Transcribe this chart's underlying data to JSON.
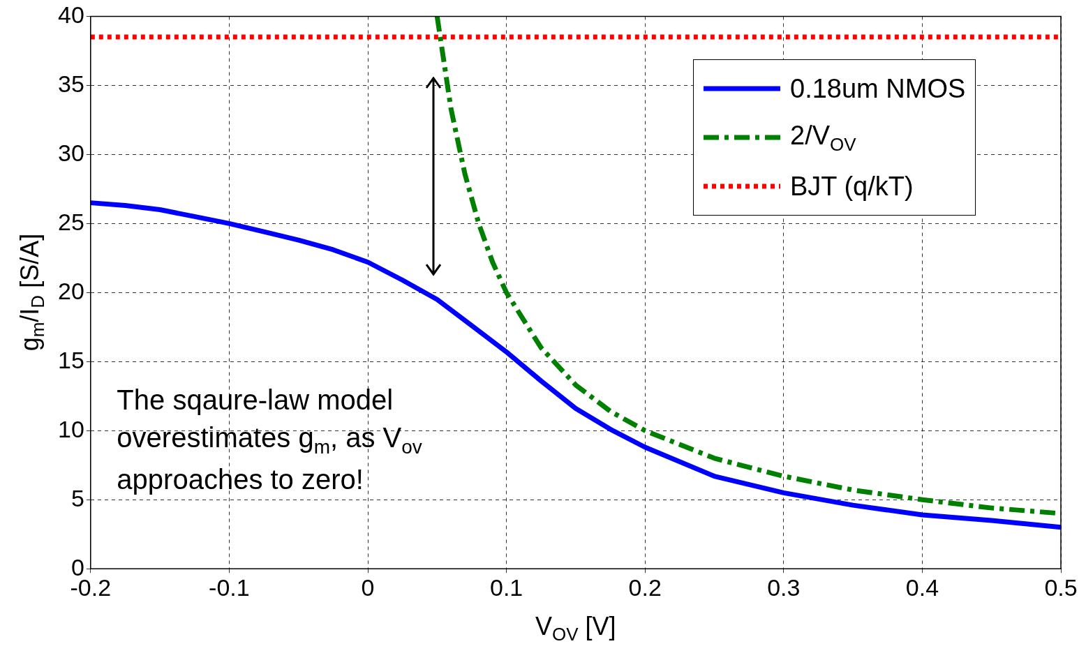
{
  "chart_data": {
    "type": "line",
    "xlabel": "V$_{OV}$  [V]",
    "ylabel": "g$_{m}$/I$_{D}$ [S/A]",
    "xlim": [
      -0.2,
      0.5
    ],
    "xticks": [
      {
        "value": -0.2,
        "label": "-0.2"
      },
      {
        "value": -0.1,
        "label": "-0.1"
      },
      0,
      0.1,
      0.2,
      0.3,
      0.4,
      0.5
    ],
    "ylim": [
      0,
      40
    ],
    "yticks": [
      0,
      5,
      10,
      15,
      20,
      25,
      30,
      35,
      40
    ],
    "grid": true,
    "legend": "top right",
    "marker": "none",
    "annotations": [
      "The sqaure-law model\noverestimates g$_{m}$, as V$_{ov}$\napproaches to zero!"
    ],
    "series": [
      {
        "name": "0.18um NMOS",
        "color": "#0000ff",
        "line_style": "solid",
        "x": [
          -0.2,
          -0.175,
          -0.15,
          -0.125,
          -0.1,
          -0.075,
          -0.05,
          -0.025,
          0,
          0.025,
          0.05,
          0.075,
          0.1,
          0.125,
          0.15,
          0.175,
          0.2,
          0.25,
          0.3,
          0.35,
          0.4,
          0.45,
          0.5
        ],
        "values": [
          26.5,
          26.3,
          26.0,
          25.5,
          25.0,
          24.4,
          23.8,
          23.1,
          22.2,
          20.9,
          19.5,
          17.6,
          15.7,
          13.6,
          11.6,
          10.1,
          8.8,
          6.7,
          5.5,
          4.6,
          3.9,
          3.5,
          3.0
        ]
      },
      {
        "name": "2/V$_{OV}$",
        "color": "#008000",
        "line_style": "dashdot",
        "x": [
          0.05,
          0.06,
          0.07,
          0.08,
          0.09,
          0.1,
          0.125,
          0.15,
          0.175,
          0.2,
          0.25,
          0.3,
          0.35,
          0.4,
          0.45,
          0.5
        ],
        "values": [
          40,
          33.3,
          28.6,
          25,
          22.2,
          20,
          16,
          13.3,
          11.4,
          10,
          8,
          6.7,
          5.7,
          5,
          4.4,
          4
        ]
      },
      {
        "name": "BJT (q/kT)",
        "color": "#ff0000",
        "line_style": "dotted",
        "x": [
          -0.2,
          0.5
        ],
        "values": [
          38.5,
          38.5
        ]
      }
    ]
  }
}
